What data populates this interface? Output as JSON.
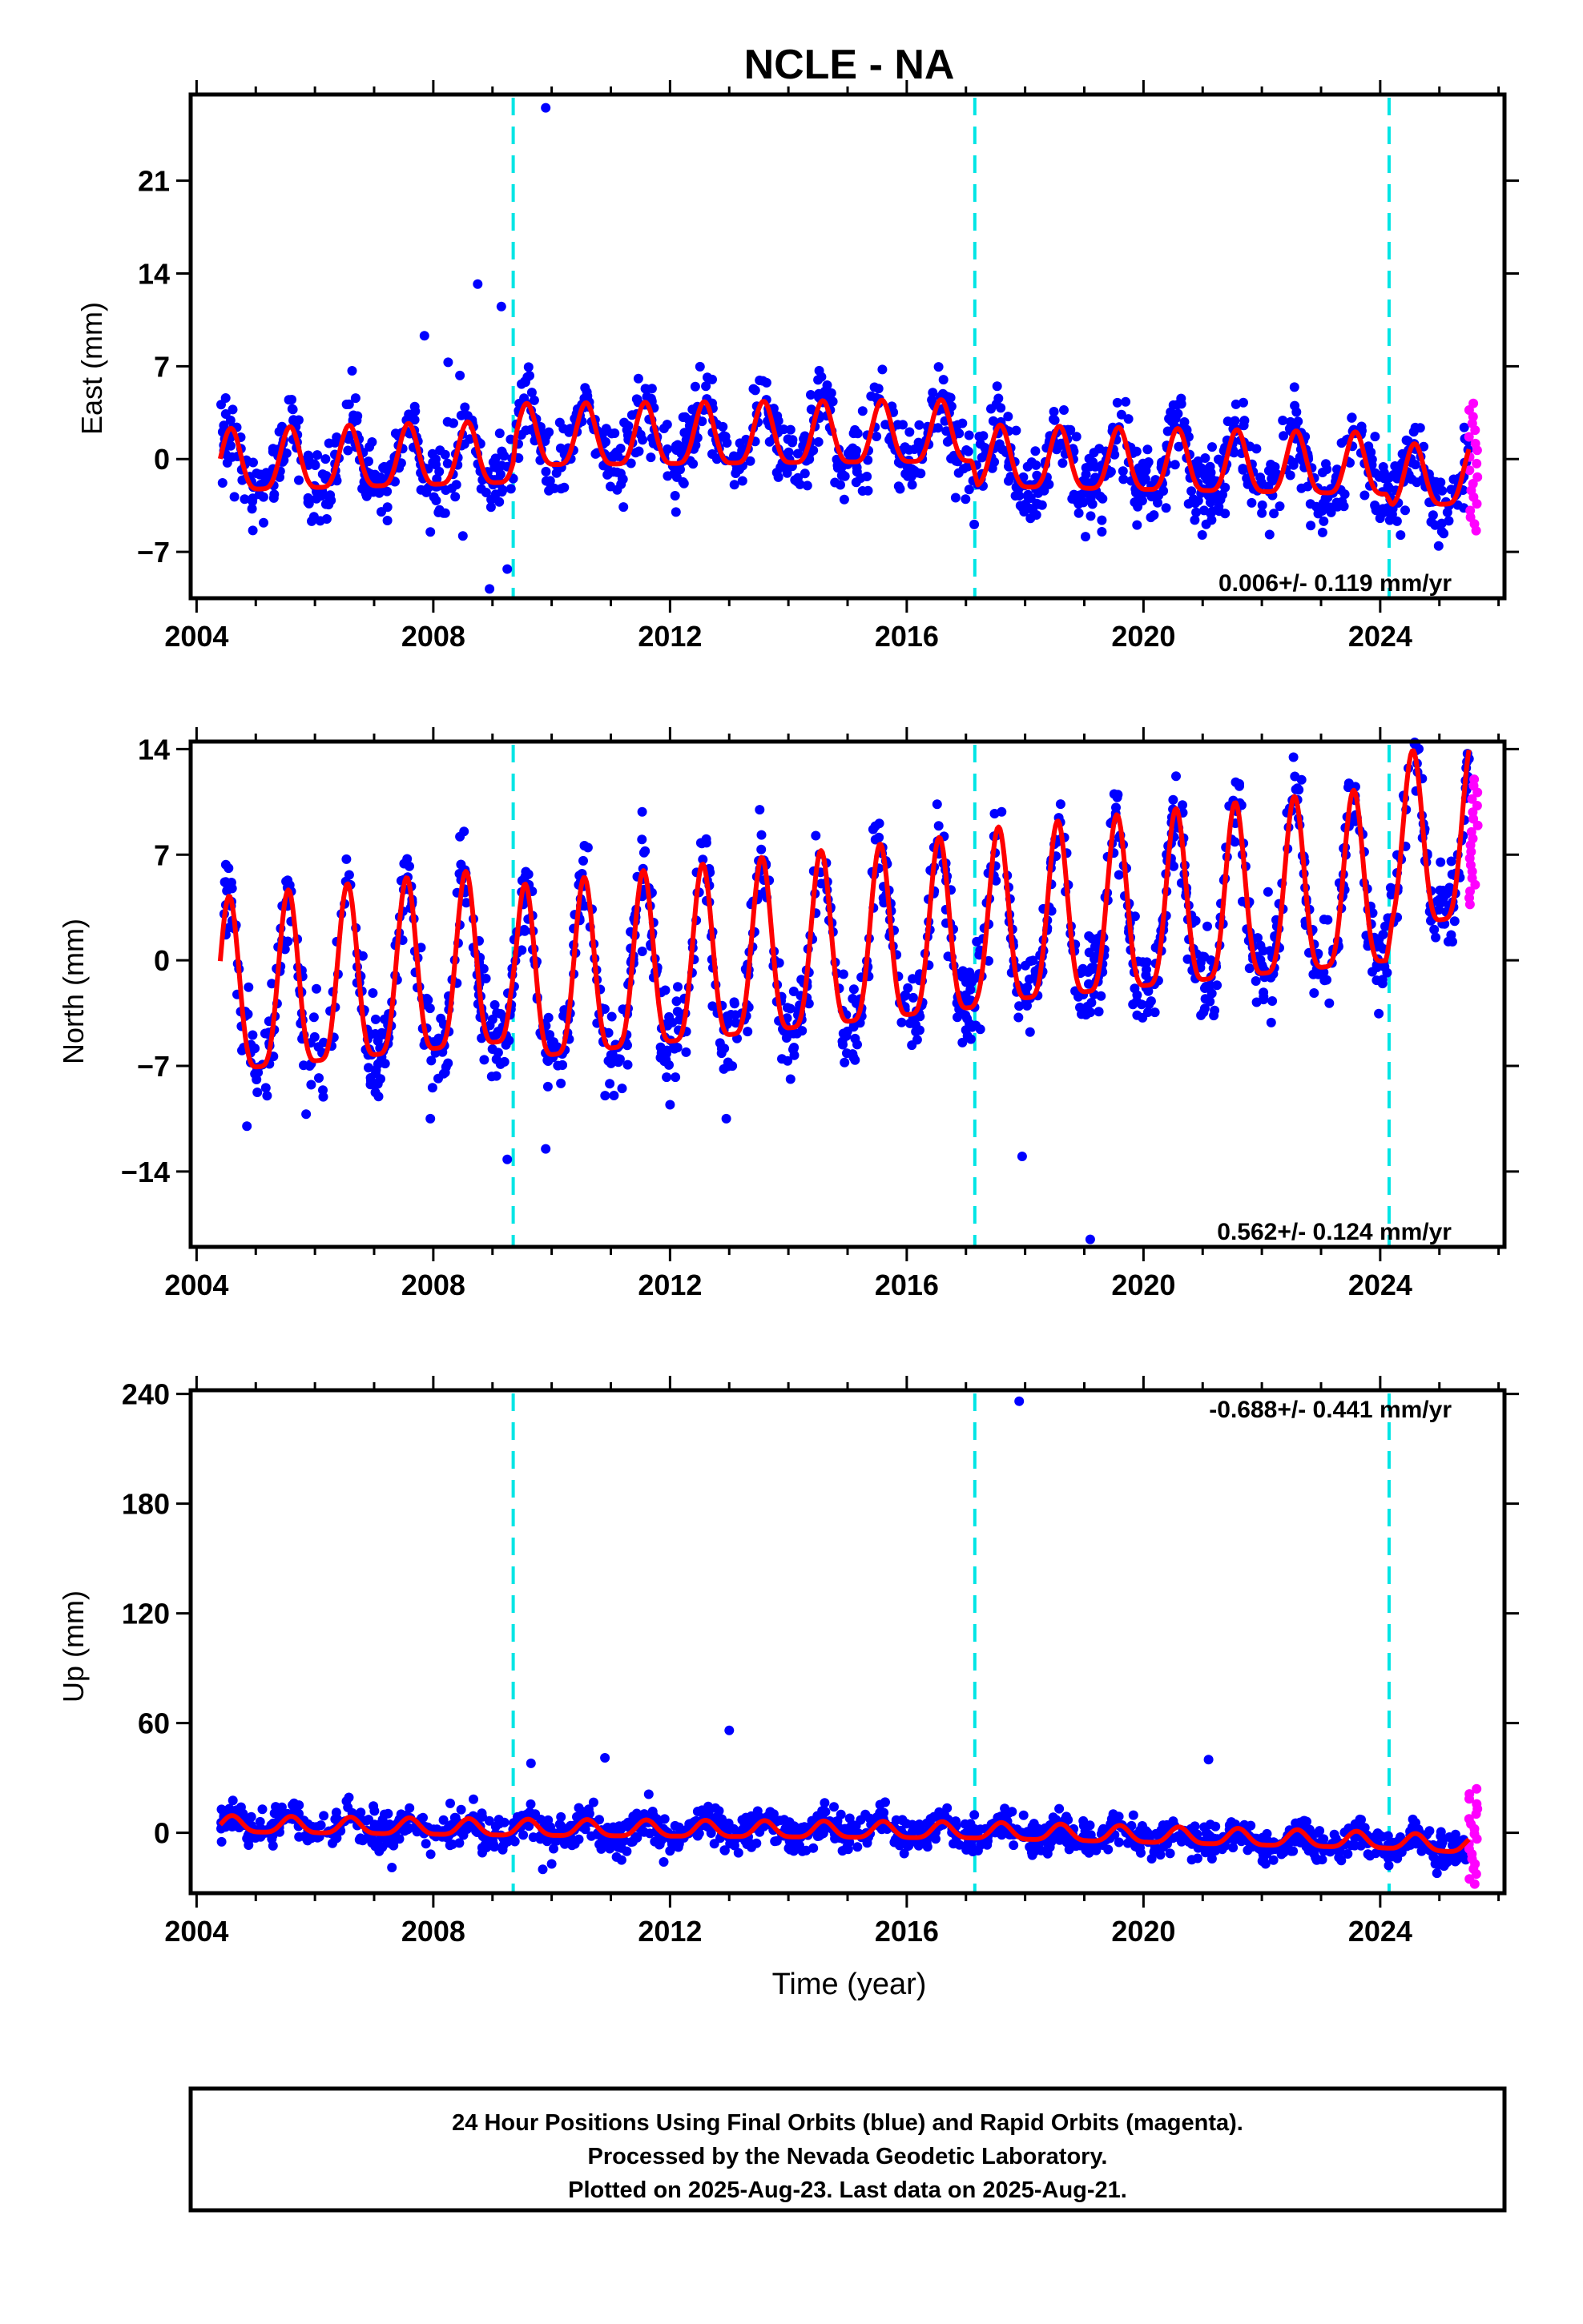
{
  "title": "NCLE - NA",
  "xlabel": "Time (year)",
  "footer": {
    "line1": "24 Hour Positions Using Final Orbits (blue) and Rapid Orbits (magenta).",
    "line2": "Processed by the Nevada Geodetic Laboratory.",
    "line3": "Plotted on 2025-Aug-23. Last data on 2025-Aug-21."
  },
  "colors": {
    "final": "#0000ff",
    "rapid": "#ff00ff",
    "model": "#ff0000",
    "equipment_change": "#00e5e5"
  },
  "chart_data": [
    {
      "type": "scatter",
      "ylabel": "East (mm)",
      "rate_label": "0.006+/- 0.119 mm/yr",
      "xlim": [
        2003.9,
        2026.1
      ],
      "ylim": [
        -10.5,
        27.5
      ],
      "xticks": [
        "2004",
        "2008",
        "2012",
        "2016",
        "2020",
        "2024"
      ],
      "yticks": [
        "-7",
        "0",
        "7",
        "14",
        "21"
      ],
      "grid": false,
      "equipment_changes": [
        2009.35,
        2017.15,
        2024.15
      ],
      "series": [
        {
          "name": "Final Orbits",
          "model": {
            "start": 2004.4,
            "end": 2025.5,
            "amplitude": 2.9,
            "phase": 2004.58,
            "spread": 1.4,
            "offset_knots": [
              [
                2004.4,
                -0.6
              ],
              [
                2009.35,
                0.0
              ],
              [
                2009.4,
                1.3
              ],
              [
                2017.1,
                1.6
              ],
              [
                2017.2,
                -0.3
              ],
              [
                2024.1,
                -0.9
              ],
              [
                2024.2,
                -1.8
              ],
              [
                2025.5,
                -1.6
              ]
            ]
          },
          "outliers": [
            [
              2009.9,
              26.5
            ],
            [
              2008.75,
              13.2
            ],
            [
              2009.15,
              11.5
            ],
            [
              2007.85,
              9.3
            ],
            [
              2008.25,
              7.3
            ],
            [
              2008.45,
              6.3
            ],
            [
              2008.95,
              -9.8
            ],
            [
              2009.25,
              -8.3
            ],
            [
              2008.5,
              -5.8
            ],
            [
              2007.95,
              -5.5
            ],
            [
              2012.1,
              -4.0
            ]
          ]
        },
        {
          "name": "Rapid Orbits",
          "x_range": [
            2025.5,
            2025.65
          ],
          "y_range": [
            -5.4,
            4.2
          ]
        }
      ]
    },
    {
      "type": "scatter",
      "ylabel": "North (mm)",
      "rate_label": "0.562+/- 0.124 mm/yr",
      "xlim": [
        2003.9,
        2026.1
      ],
      "ylim": [
        -19.0,
        14.5
      ],
      "xticks": [
        "2004",
        "2008",
        "2012",
        "2016",
        "2020",
        "2024"
      ],
      "yticks": [
        "-14",
        "-7",
        "0",
        "7",
        "14"
      ],
      "grid": false,
      "equipment_changes": [
        2009.35,
        2017.15,
        2024.15
      ],
      "series": [
        {
          "name": "Final Orbits",
          "model": {
            "start": 2004.4,
            "end": 2025.5,
            "amplitude": 7.2,
            "phase": 2004.55,
            "spread": 1.4,
            "offset_knots": [
              [
                2004.4,
                -3.0
              ],
              [
                2009.3,
                -1.0
              ],
              [
                2009.4,
                -2.2
              ],
              [
                2017.1,
                1.2
              ],
              [
                2017.2,
                1.5
              ],
              [
                2024.1,
                4.3
              ],
              [
                2024.2,
                6.5
              ],
              [
                2025.5,
                7.3
              ]
            ]
          },
          "outliers": [
            [
              2019.1,
              -18.5
            ],
            [
              2017.95,
              -13.0
            ],
            [
              2009.25,
              -13.2
            ],
            [
              2009.9,
              -12.5
            ],
            [
              2012.95,
              -10.5
            ],
            [
              2007.95,
              -10.5
            ],
            [
              2004.85,
              -11.0
            ],
            [
              2005.85,
              -10.2
            ],
            [
              2008.45,
              8.2
            ],
            [
              2006.6,
              5.0
            ],
            [
              2024.6,
              14.3
            ]
          ]
        },
        {
          "name": "Rapid Orbits",
          "x_range": [
            2025.5,
            2025.65
          ],
          "y_range": [
            3.7,
            12.0
          ]
        }
      ]
    },
    {
      "type": "scatter",
      "ylabel": "Up (mm)",
      "rate_label": "-0.688+/- 0.441 mm/yr",
      "xlim": [
        2003.9,
        2026.1
      ],
      "ylim": [
        -33,
        242
      ],
      "xticks": [
        "2004",
        "2008",
        "2012",
        "2016",
        "2020",
        "2024"
      ],
      "yticks": [
        "0",
        "60",
        "120",
        "180",
        "240"
      ],
      "grid": false,
      "equipment_changes": [
        2009.35,
        2017.15,
        2024.15
      ],
      "series": [
        {
          "name": "Final Orbits",
          "model": {
            "start": 2004.4,
            "end": 2025.5,
            "amplitude": 5.5,
            "phase": 2004.6,
            "spread": 4.5,
            "offset_knots": [
              [
                2004.4,
                4.0
              ],
              [
                2009.35,
                2.0
              ],
              [
                2017.1,
                0.5
              ],
              [
                2024.1,
                -5.0
              ],
              [
                2025.5,
                -7.5
              ]
            ]
          },
          "outliers": [
            [
              2017.9,
              236
            ],
            [
              2013.0,
              56
            ],
            [
              2021.1,
              40
            ],
            [
              2010.9,
              41
            ],
            [
              2009.65,
              38
            ],
            [
              2009.85,
              -20
            ],
            [
              2010.0,
              -17
            ],
            [
              2007.3,
              -19
            ]
          ]
        },
        {
          "name": "Rapid Orbits",
          "x_range": [
            2025.5,
            2025.65
          ],
          "y_range": [
            -28,
            24
          ]
        }
      ]
    }
  ]
}
